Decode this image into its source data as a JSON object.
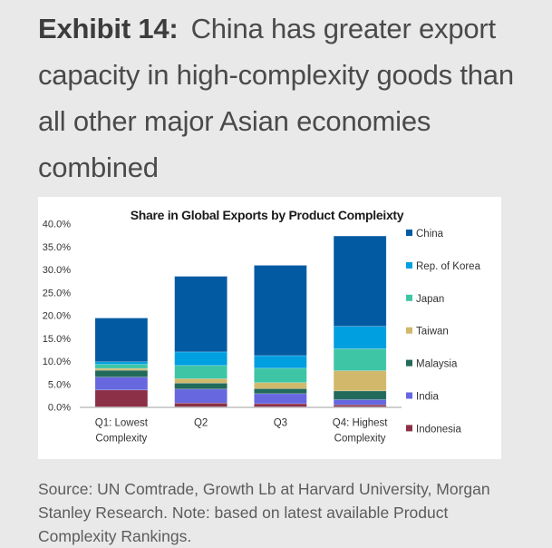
{
  "headline": {
    "exhibit_label": "Exhibit 14:",
    "text": "China has greater export capacity in high-complexity goods than all other major Asian economies combined"
  },
  "source_note": "Source: UN Comtrade, Growth Lb at Harvard University, Morgan Stanley Research. Note: based on latest available Product Complexity Rankings.",
  "chart_data": {
    "type": "bar",
    "stacked": true,
    "title": "Share in Global Exports by Product Compleixty",
    "xlabel": "",
    "ylabel": "",
    "categories": [
      [
        "Q1: Lowest",
        "Complexity"
      ],
      [
        "Q2"
      ],
      [
        "Q3"
      ],
      [
        "Q4: Highest",
        "Complexity"
      ]
    ],
    "ylim": [
      0,
      40
    ],
    "yticks": [
      "0.0%",
      "5.0%",
      "10.0%",
      "15.0%",
      "20.0%",
      "25.0%",
      "30.0%",
      "35.0%",
      "40.0%"
    ],
    "grid": false,
    "legend_position": "right",
    "series": [
      {
        "name": "Indonesia",
        "color": "#8b3046",
        "values": [
          3.7,
          0.85,
          0.7,
          0.45
        ]
      },
      {
        "name": "India",
        "color": "#6767e0",
        "values": [
          2.8,
          3.05,
          2.2,
          1.15
        ]
      },
      {
        "name": "Malaysia",
        "color": "#226a5a",
        "values": [
          1.5,
          1.3,
          1.1,
          1.9
        ]
      },
      {
        "name": "Taiwan",
        "color": "#d1b86a",
        "values": [
          0.4,
          0.95,
          1.3,
          4.4
        ]
      },
      {
        "name": "Japan",
        "color": "#3ec5a6",
        "values": [
          0.9,
          2.9,
          3.15,
          4.8
        ]
      },
      {
        "name": "Rep. of Korea",
        "color": "#009fe0",
        "values": [
          0.55,
          2.95,
          2.75,
          4.9
        ]
      },
      {
        "name": "China",
        "color": "#015aa2",
        "values": [
          9.55,
          16.5,
          19.7,
          19.7
        ]
      }
    ],
    "legend_order": [
      "China",
      "Rep. of Korea",
      "Japan",
      "Taiwan",
      "Malaysia",
      "India",
      "Indonesia"
    ]
  }
}
